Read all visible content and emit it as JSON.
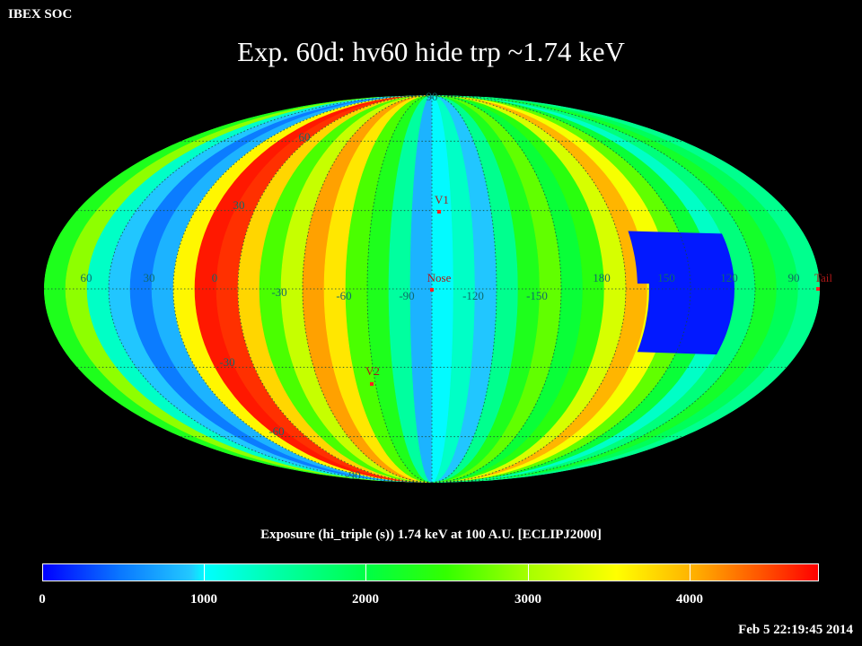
{
  "header": {
    "label": "IBEX SOC"
  },
  "title": "Exp.   60d: hv60 hide trp ~1.74 keV",
  "map": {
    "projection": "mollweide",
    "value_range": [
      0,
      4800
    ],
    "meridian_labels": [
      "60",
      "30",
      "0",
      "-30",
      "-60",
      "-90",
      "-120",
      "-150",
      "180",
      "150",
      "120",
      "90"
    ],
    "meridian_longitudes": [
      60,
      30,
      0,
      -30,
      -60,
      -90,
      -120,
      -150,
      180,
      150,
      120,
      90
    ],
    "parallel_labels": [
      "90",
      "60",
      "30",
      "-30",
      "-60",
      "-90"
    ],
    "markers": [
      {
        "label": "V1",
        "color": "#ff2020"
      },
      {
        "label": "Nose",
        "color": "#ff2020"
      },
      {
        "label": "V2",
        "color": "#ff2020"
      },
      {
        "label": "Tail",
        "color": "#ff2020"
      }
    ],
    "strip_profile": [
      2300,
      2900,
      1300,
      900,
      500,
      800,
      3600,
      4700,
      4600,
      3800,
      2600,
      3200,
      4100,
      3700,
      2600,
      2300,
      1500,
      800,
      1000,
      1300,
      900,
      1600,
      2300,
      2700,
      2100,
      2400,
      3300,
      4000,
      3500,
      2700,
      2100,
      1300,
      1700,
      2200,
      1900,
      1600
    ],
    "low_region": {
      "label": "",
      "value": 100
    }
  },
  "colorbar": {
    "title": "Exposure (hi_triple (s))  1.74 keV at 100 A.U. [ECLIPJ2000]",
    "ticks": [
      "0",
      "1000",
      "2000",
      "3000",
      "4000"
    ],
    "tick_values": [
      0,
      1000,
      2000,
      3000,
      4000
    ],
    "max": 4800
  },
  "timestamp": "Feb  5 22:19:45 2014"
}
